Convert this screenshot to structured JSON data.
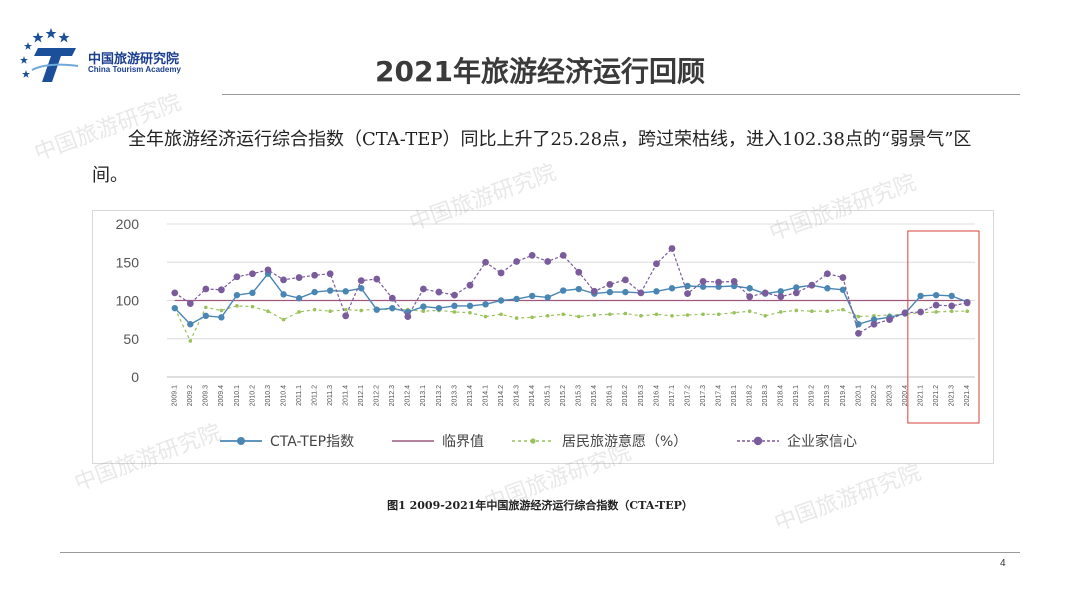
{
  "logo": {
    "name_cn": "中国旅游研究院",
    "name_en": "China Tourism Academy"
  },
  "page_title": "2021年旅游经济运行回顾",
  "body_text": "全年旅游经济运行综合指数（CTA-TEP）同比上升了25.28点，跨过荣枯线，进入102.38点的“弱景气”区间。",
  "caption": "图1   2009-2021年中国旅游经济运行综合指数（CTA-TEP）",
  "page_number": "4",
  "watermark_text": "中国旅游研究院",
  "colors": {
    "cta": "#4a86b4",
    "threshold": "#9e5a7e",
    "resident": "#9ac15c",
    "business": "#7a5c9c",
    "highlight": "#d9413a"
  },
  "chart_data": {
    "type": "line",
    "categories": [
      "2009.1",
      "2009.2",
      "2009.3",
      "2009.4",
      "2010.1",
      "2010.2",
      "2010.3",
      "2010.4",
      "2011.1",
      "2011.2",
      "2011.3",
      "2011.4",
      "2012.1",
      "2012.2",
      "2012.3",
      "2012.4",
      "2013.1",
      "2013.2",
      "2013.3",
      "2013.4",
      "2014.1",
      "2014.2",
      "2014.3",
      "2014.4",
      "2015.1",
      "2015.2",
      "2015.3",
      "2015.4",
      "2016.1",
      "2016.2",
      "2016.3",
      "2016.4",
      "2017.1",
      "2017.2",
      "2017.3",
      "2017.4",
      "2018.1",
      "2018.2",
      "2018.3",
      "2018.4",
      "2019.1",
      "2019.2",
      "2019.3",
      "2019.4",
      "2020.1",
      "2020.2",
      "2020.3",
      "2020.4",
      "2021.1",
      "2021.2",
      "2021.3",
      "2021.4"
    ],
    "ylim": [
      0,
      200
    ],
    "yticks": [
      "0",
      "50",
      "100",
      "150",
      "200"
    ],
    "grid": true,
    "legend_position": "bottom",
    "series": [
      {
        "name": "CTA-TEP指数",
        "style": "line-marker",
        "values": [
          90,
          69,
          80,
          78,
          107,
          110,
          135,
          108,
          103,
          111,
          113,
          112,
          116,
          88,
          90,
          85,
          92,
          90,
          93,
          93,
          95,
          100,
          102,
          106,
          104,
          113,
          115,
          109,
          111,
          111,
          110,
          112,
          116,
          119,
          118,
          118,
          119,
          116,
          109,
          112,
          117,
          120,
          116,
          114,
          69,
          75,
          78,
          83,
          106,
          107,
          106,
          98
        ]
      },
      {
        "name": "临界值",
        "style": "flat-line",
        "values": [
          100,
          100,
          100,
          100,
          100,
          100,
          100,
          100,
          100,
          100,
          100,
          100,
          100,
          100,
          100,
          100,
          100,
          100,
          100,
          100,
          100,
          100,
          100,
          100,
          100,
          100,
          100,
          100,
          100,
          100,
          100,
          100,
          100,
          100,
          100,
          100,
          100,
          100,
          100,
          100,
          100,
          100,
          100,
          100,
          100,
          100,
          100,
          100,
          100,
          100,
          100,
          100
        ]
      },
      {
        "name": "居民旅游意愿（%）",
        "style": "dashed-marker",
        "values": [
          90,
          47,
          91,
          87,
          93,
          92,
          86,
          75,
          85,
          88,
          86,
          88,
          87,
          89,
          88,
          88,
          86,
          87,
          85,
          84,
          79,
          82,
          77,
          78,
          80,
          82,
          79,
          81,
          82,
          83,
          80,
          82,
          80,
          81,
          82,
          82,
          84,
          86,
          80,
          85,
          87,
          86,
          86,
          88,
          79,
          80,
          81,
          82,
          84,
          85,
          86,
          86
        ]
      },
      {
        "name": "企业家信心",
        "style": "dashed-marker",
        "values": [
          110,
          96,
          115,
          114,
          131,
          135,
          140,
          127,
          130,
          133,
          135,
          80,
          126,
          128,
          103,
          79,
          115,
          111,
          107,
          120,
          150,
          136,
          151,
          159,
          151,
          159,
          137,
          112,
          121,
          127,
          110,
          148,
          168,
          109,
          125,
          124,
          125,
          105,
          110,
          105,
          110,
          120,
          135,
          130,
          57,
          69,
          75,
          84,
          85,
          94,
          93,
          97
        ]
      }
    ]
  }
}
